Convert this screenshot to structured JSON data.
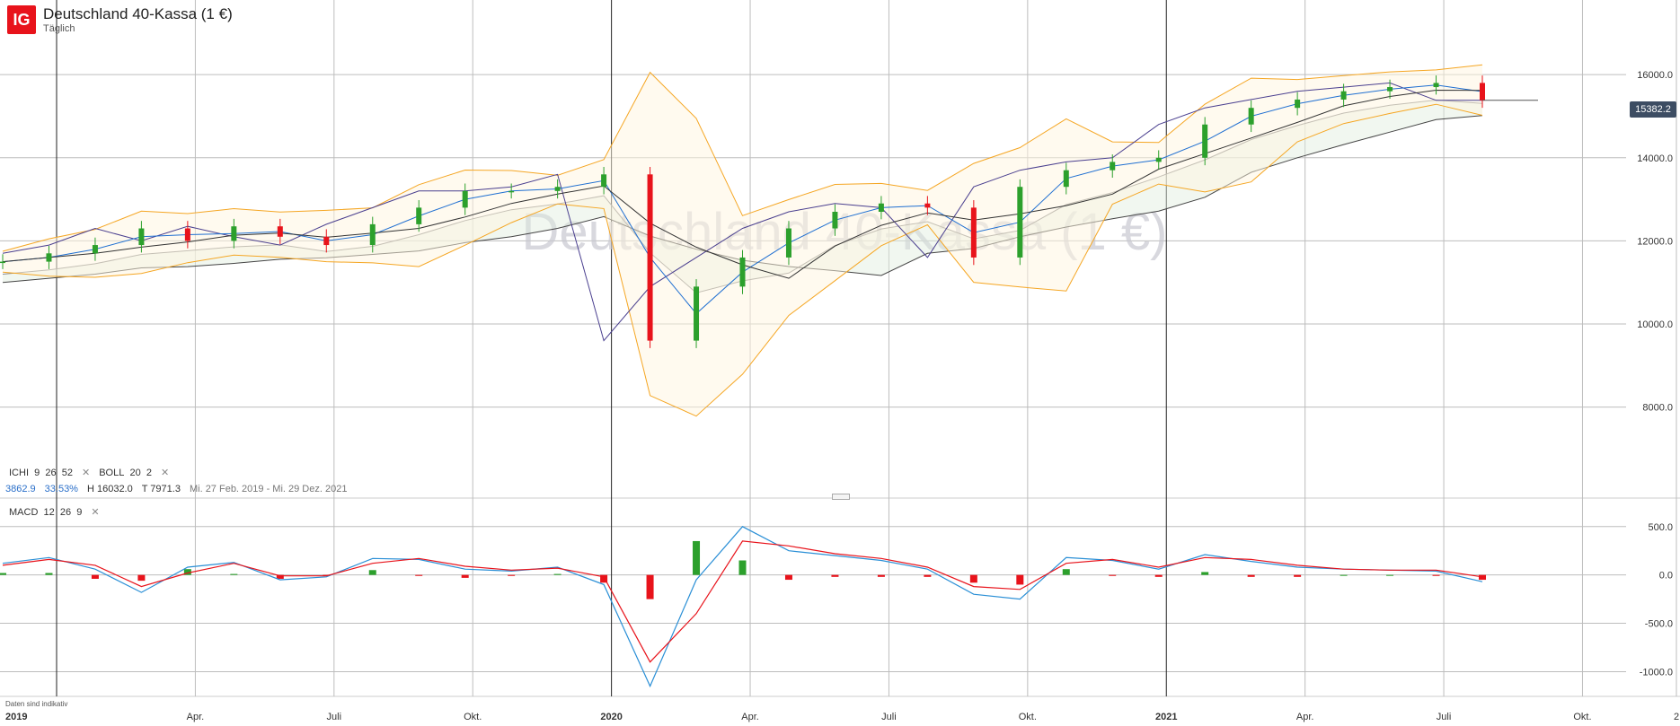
{
  "header": {
    "logo_text": "IG",
    "title": "Deutschland 40-Kassa (1 €)",
    "subtitle": "Täglich"
  },
  "watermark": "Deutschland 40-Kassa (1 €)",
  "current_price_label": "15382.2",
  "indicator_legend": {
    "ichi": {
      "name": "ICHI",
      "p1": "9",
      "p2": "26",
      "p3": "52"
    },
    "boll": {
      "name": "BOLL",
      "p1": "20",
      "p2": "2"
    },
    "close_symbol": "✕",
    "stats": {
      "change": "3862.9",
      "change_pct": "33.53%",
      "high": "H 16032.0",
      "low": "T 7971.3",
      "range": "Mi. 27 Feb. 2019 - Mi. 29 Dez. 2021"
    },
    "macd": {
      "name": "MACD",
      "p1": "12",
      "p2": "26",
      "p3": "9"
    }
  },
  "disclaimer": "Daten sind indikativ",
  "colors": {
    "up": "#2ca02c",
    "down": "#e8131b",
    "bollinger": "#f5a623",
    "ichimoku_tenkan": "#1f6fd1",
    "ichimoku_kijun": "#333333",
    "ichimoku_chikou": "#4a3f8f",
    "macd_line": "#2a8fd6",
    "signal_line": "#e8131b"
  },
  "chart_data": [
    {
      "type": "line",
      "panel": "price",
      "title": "",
      "y_ticks": [
        "16000.0",
        "14000.0",
        "12000.0",
        "10000.0",
        "8000.0"
      ],
      "ylim": [
        7000,
        16500
      ],
      "x_ticks": [
        "2019",
        "Apr.",
        "Juli",
        "Okt.",
        "2020",
        "Apr.",
        "Juli",
        "Okt.",
        "2021",
        "Apr.",
        "Juli",
        "Okt.",
        "2"
      ],
      "grid": true,
      "series": [
        {
          "key": "close",
          "x": [
            "2019-01",
            "2019-02",
            "2019-03",
            "2019-04",
            "2019-05",
            "2019-06",
            "2019-07",
            "2019-08",
            "2019-09",
            "2019-10",
            "2019-11",
            "2019-12",
            "2020-01",
            "2020-02",
            "2020-03",
            "2020-04",
            "2020-05",
            "2020-06",
            "2020-07",
            "2020-08",
            "2020-09",
            "2020-10",
            "2020-11",
            "2020-12",
            "2021-01",
            "2021-02",
            "2021-03",
            "2021-04",
            "2021-05",
            "2021-06",
            "2021-07",
            "2021-08",
            "2021-09"
          ],
          "values": [
            11500,
            11700,
            11900,
            12300,
            12000,
            12350,
            12100,
            11900,
            12400,
            12800,
            13200,
            13200,
            13300,
            13600,
            9600,
            10900,
            11600,
            12300,
            12700,
            12900,
            12800,
            11600,
            13300,
            13700,
            13900,
            14000,
            14800,
            15200,
            15400,
            15600,
            15700,
            15800,
            15382
          ]
        }
      ]
    },
    {
      "type": "bar",
      "panel": "macd",
      "title": "",
      "y_ticks": [
        "500.0",
        "0.0",
        "-500.0",
        "-1000.0"
      ],
      "ylim": [
        -1200,
        600
      ],
      "grid": true,
      "series": [
        {
          "key": "macd",
          "values": [
            120,
            180,
            60,
            -180,
            80,
            130,
            -50,
            -20,
            170,
            160,
            60,
            40,
            80,
            -100,
            -1150,
            -50,
            500,
            250,
            200,
            150,
            60,
            -200,
            -250,
            180,
            150,
            60,
            210,
            140,
            80,
            60,
            50,
            40,
            -70
          ]
        },
        {
          "key": "signal",
          "values": [
            100,
            160,
            100,
            -120,
            20,
            120,
            -10,
            -10,
            120,
            170,
            90,
            50,
            70,
            -20,
            -900,
            -400,
            350,
            300,
            220,
            170,
            80,
            -120,
            -150,
            120,
            160,
            80,
            180,
            160,
            100,
            60,
            50,
            50,
            -20
          ]
        }
      ]
    }
  ]
}
